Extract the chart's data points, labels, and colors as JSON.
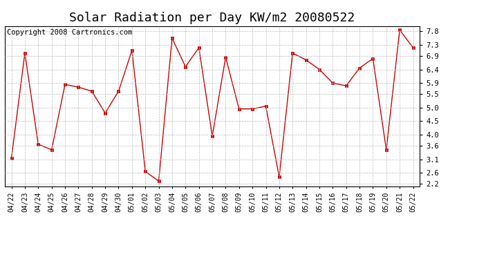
{
  "title": "Solar Radiation per Day KW/m2 20080522",
  "copyright_text": "Copyright 2008 Cartronics.com",
  "dates": [
    "04/22",
    "04/23",
    "04/24",
    "04/25",
    "04/26",
    "04/27",
    "04/28",
    "04/29",
    "04/30",
    "05/01",
    "05/02",
    "05/03",
    "05/04",
    "05/05",
    "05/06",
    "05/07",
    "05/08",
    "05/09",
    "05/10",
    "05/11",
    "05/12",
    "05/13",
    "05/14",
    "05/15",
    "05/16",
    "05/17",
    "05/18",
    "05/19",
    "05/20",
    "05/21",
    "05/22"
  ],
  "values": [
    3.15,
    7.0,
    3.65,
    3.45,
    5.85,
    5.75,
    5.6,
    4.8,
    5.6,
    7.1,
    2.65,
    2.3,
    7.55,
    6.5,
    7.2,
    3.95,
    6.85,
    4.95,
    4.95,
    5.05,
    2.45,
    7.0,
    6.75,
    6.4,
    5.9,
    5.8,
    6.45,
    6.8,
    3.45,
    7.85,
    7.2
  ],
  "line_color": "#cc0000",
  "marker_color": "#cc0000",
  "background_color": "#ffffff",
  "grid_color": "#bbbbbb",
  "ylim": [
    2.1,
    8.0
  ],
  "yticks": [
    2.2,
    2.6,
    3.1,
    3.6,
    4.0,
    4.5,
    5.0,
    5.5,
    5.9,
    6.4,
    6.9,
    7.3,
    7.8
  ],
  "title_fontsize": 13,
  "copyright_fontsize": 7.5,
  "tick_fontsize": 7,
  "ytick_fontsize": 7.5
}
